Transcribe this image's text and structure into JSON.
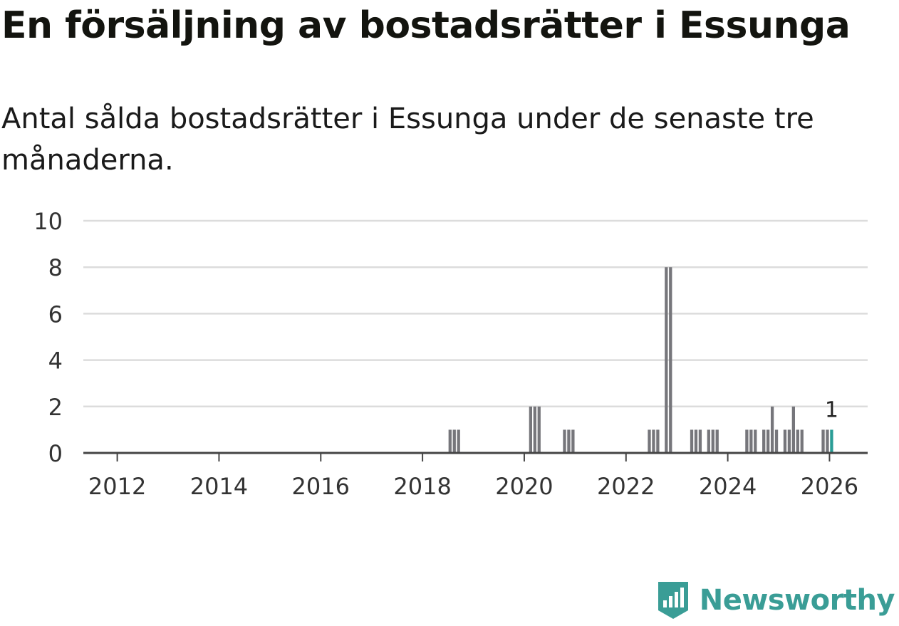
{
  "header": {
    "title": "En försäljning av bostadsrätter i Essunga",
    "subtitle": "Antal sålda bostadsrätter i Essunga under de senaste tre månaderna."
  },
  "brand": {
    "name": "Newsworthy",
    "icon": "newsworthy-logo-icon"
  },
  "colors": {
    "bar": "#76767b",
    "highlight": "#2a9d96",
    "grid": "#dcdcdc",
    "axis": "#444444"
  },
  "chart_data": {
    "type": "bar",
    "x_type": "date",
    "xlim": [
      "2011-05",
      "2026-10"
    ],
    "ylim": [
      0,
      10
    ],
    "y_ticks": [
      0,
      2,
      4,
      6,
      8,
      10
    ],
    "x_ticks": [
      "2012",
      "2014",
      "2016",
      "2018",
      "2020",
      "2022",
      "2024",
      "2026"
    ],
    "grid": true,
    "xlabel": "",
    "ylabel": "",
    "bars": [
      {
        "x": "2018-07",
        "y": 1
      },
      {
        "x": "2018-08",
        "y": 1
      },
      {
        "x": "2018-09",
        "y": 1
      },
      {
        "x": "2020-02",
        "y": 2
      },
      {
        "x": "2020-03",
        "y": 2
      },
      {
        "x": "2020-04",
        "y": 2
      },
      {
        "x": "2020-10",
        "y": 1
      },
      {
        "x": "2020-11",
        "y": 1
      },
      {
        "x": "2020-12",
        "y": 1
      },
      {
        "x": "2022-06",
        "y": 1
      },
      {
        "x": "2022-07",
        "y": 1
      },
      {
        "x": "2022-08",
        "y": 1
      },
      {
        "x": "2022-10",
        "y": 8
      },
      {
        "x": "2022-11",
        "y": 8
      },
      {
        "x": "2023-04",
        "y": 1
      },
      {
        "x": "2023-05",
        "y": 1
      },
      {
        "x": "2023-06",
        "y": 1
      },
      {
        "x": "2023-08",
        "y": 1
      },
      {
        "x": "2023-09",
        "y": 1
      },
      {
        "x": "2023-10",
        "y": 1
      },
      {
        "x": "2024-05",
        "y": 1
      },
      {
        "x": "2024-06",
        "y": 1
      },
      {
        "x": "2024-07",
        "y": 1
      },
      {
        "x": "2024-09",
        "y": 1
      },
      {
        "x": "2024-10",
        "y": 1
      },
      {
        "x": "2024-11",
        "y": 2
      },
      {
        "x": "2024-12",
        "y": 1
      },
      {
        "x": "2025-02",
        "y": 1
      },
      {
        "x": "2025-03",
        "y": 1
      },
      {
        "x": "2025-04",
        "y": 2
      },
      {
        "x": "2025-05",
        "y": 1
      },
      {
        "x": "2025-06",
        "y": 1
      },
      {
        "x": "2025-11",
        "y": 1
      },
      {
        "x": "2025-12",
        "y": 1
      },
      {
        "x": "2026-01",
        "y": 1,
        "highlight": true,
        "label": "1"
      }
    ]
  }
}
